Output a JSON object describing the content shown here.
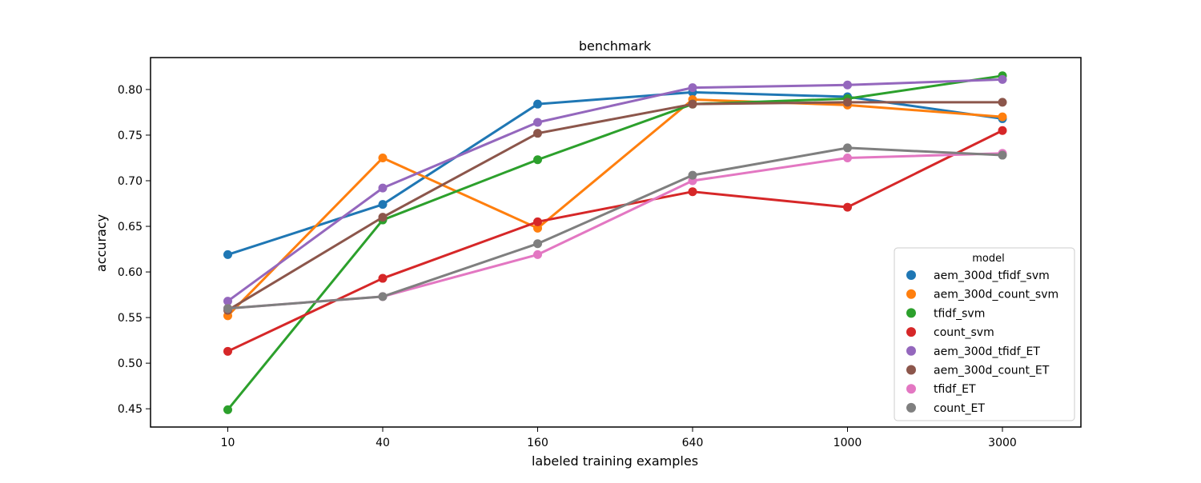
{
  "chart_data": {
    "type": "line",
    "title": "benchmark",
    "xlabel": "labeled training examples",
    "ylabel": "accuracy",
    "categories": [
      "10",
      "40",
      "160",
      "640",
      "1000",
      "3000"
    ],
    "ylim": [
      0.43,
      0.835
    ],
    "yticks": [
      "0.45",
      "0.50",
      "0.55",
      "0.60",
      "0.65",
      "0.70",
      "0.75",
      "0.80"
    ],
    "grid": false,
    "legend": {
      "title": "model",
      "placement": "lower-right"
    },
    "series": [
      {
        "name": "aem_300d_tfidf_svm",
        "color": "#1f77b4",
        "values": [
          0.619,
          0.674,
          0.784,
          0.797,
          0.792,
          0.768
        ]
      },
      {
        "name": "aem_300d_count_svm",
        "color": "#ff7f0e",
        "values": [
          0.552,
          0.725,
          0.648,
          0.789,
          0.783,
          0.77
        ]
      },
      {
        "name": "tfidf_svm",
        "color": "#2ca02c",
        "values": [
          0.449,
          0.657,
          0.723,
          0.784,
          0.79,
          0.815
        ]
      },
      {
        "name": "count_svm",
        "color": "#d62728",
        "values": [
          0.513,
          0.593,
          0.655,
          0.688,
          0.671,
          0.755
        ]
      },
      {
        "name": "aem_300d_tfidf_ET",
        "color": "#9467bd",
        "values": [
          0.568,
          0.692,
          0.764,
          0.802,
          0.805,
          0.811
        ]
      },
      {
        "name": "aem_300d_count_ET",
        "color": "#8c564b",
        "values": [
          0.558,
          0.66,
          0.752,
          0.784,
          0.786,
          0.786
        ]
      },
      {
        "name": "tfidf_ET",
        "color": "#e377c2",
        "values": [
          0.56,
          0.573,
          0.619,
          0.7,
          0.725,
          0.73
        ]
      },
      {
        "name": "count_ET",
        "color": "#7f7f7f",
        "values": [
          0.56,
          0.573,
          0.631,
          0.706,
          0.736,
          0.728
        ]
      }
    ]
  }
}
